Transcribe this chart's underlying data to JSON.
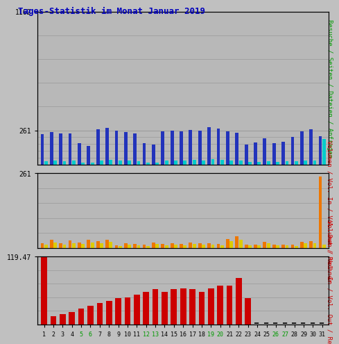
{
  "title": "Tages-Statistik im Monat Januar 2019",
  "weekend_days": [
    5,
    6,
    12,
    13,
    19,
    20,
    26,
    27
  ],
  "p1_ylim": 1162,
  "p1_yticks": [
    261,
    1162
  ],
  "p2_ylim": 261,
  "p2_yticks": [
    261
  ],
  "p3_ylim": 119.47,
  "p3_yticks": [
    119.47
  ],
  "blue": [
    230,
    250,
    240,
    235,
    165,
    145,
    270,
    280,
    260,
    250,
    240,
    165,
    155,
    255,
    260,
    255,
    265,
    260,
    285,
    275,
    255,
    245,
    155,
    170,
    200,
    165,
    175,
    210,
    255,
    270,
    215
  ],
  "cyan": [
    28,
    32,
    28,
    30,
    18,
    14,
    33,
    36,
    31,
    30,
    27,
    18,
    16,
    29,
    32,
    30,
    36,
    33,
    40,
    36,
    32,
    30,
    20,
    22,
    26,
    22,
    24,
    26,
    33,
    34,
    195
  ],
  "yellow": [
    12,
    20,
    11,
    18,
    14,
    20,
    18,
    22,
    7,
    12,
    9,
    8,
    14,
    9,
    12,
    9,
    14,
    11,
    12,
    9,
    24,
    30,
    9,
    9,
    16,
    9,
    9,
    8,
    17,
    18,
    12
  ],
  "orange": [
    18,
    28,
    16,
    26,
    20,
    28,
    24,
    30,
    10,
    18,
    14,
    12,
    20,
    14,
    18,
    14,
    20,
    16,
    17,
    14,
    32,
    42,
    13,
    12,
    22,
    12,
    12,
    12,
    22,
    24,
    16
  ],
  "orange_day31_special": 250,
  "red": [
    119,
    15,
    18,
    22,
    28,
    33,
    38,
    42,
    46,
    48,
    53,
    57,
    62,
    57,
    62,
    64,
    62,
    57,
    64,
    68,
    68,
    82,
    46,
    2,
    2,
    2,
    2,
    2,
    2,
    2,
    2
  ],
  "bg_color": "#c0c0c0",
  "plot_bg": "#b8b8b8",
  "blue_color": "#2233bb",
  "cyan_color": "#00cccc",
  "yellow_color": "#ddcc00",
  "orange_color": "#ee7700",
  "red_color": "#cc0000",
  "title_color": "#0000bb",
  "green_color": "#009900",
  "right_label1_color": "#009900",
  "right_label23_color": "#cc0000",
  "grid_color": "#999999",
  "right_label1": "Besuche / Seiten / Dateien / Anfragen",
  "right_label2": "Volumen / Vol. In / Vol. Out / Rechner",
  "right_label3": "Volumen / Vol. In / Vol. Out / Rechner"
}
